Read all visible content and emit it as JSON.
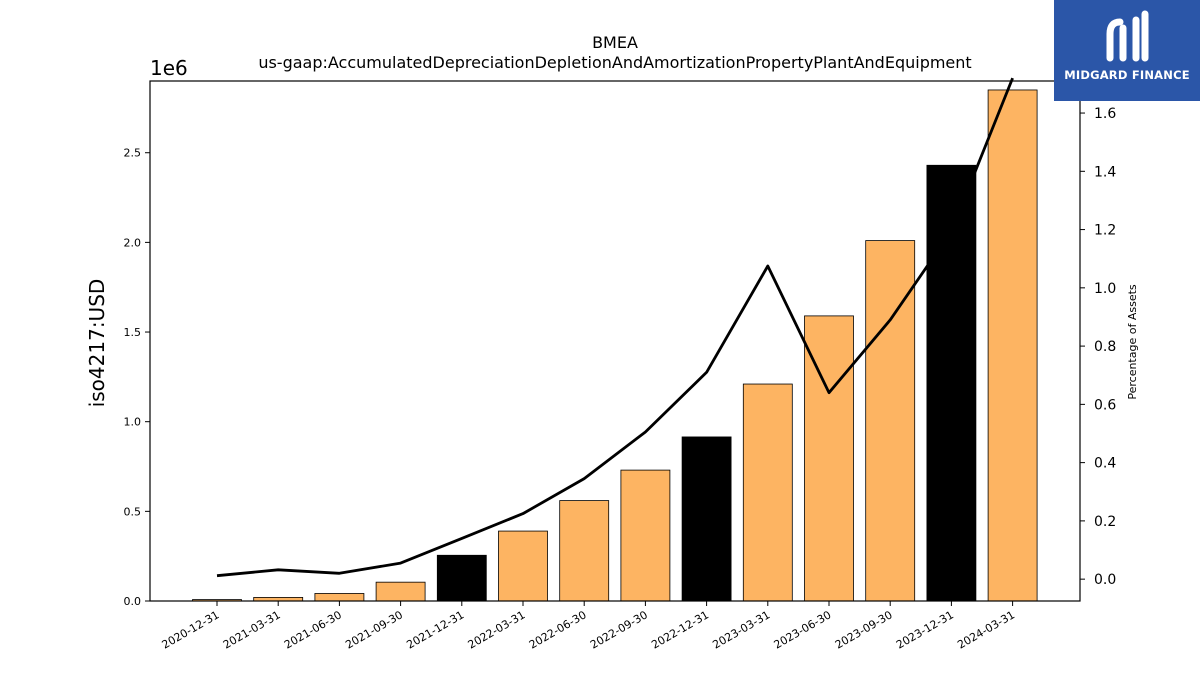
{
  "chart_data": {
    "type": "bar",
    "title": "BMEA",
    "subtitle": "us-gaap:AccumulatedDepreciationDepletionAndAmortizationPropertyPlantAndEquipment",
    "ylabel": "iso4217:USD",
    "y_offset_label": "1e6",
    "y2label": "Percentage of Assets",
    "categories": [
      "2020-12-31",
      "2021-03-31",
      "2021-06-30",
      "2021-09-30",
      "2021-12-31",
      "2022-03-31",
      "2022-06-30",
      "2022-09-30",
      "2022-12-31",
      "2023-03-31",
      "2023-06-30",
      "2023-09-30",
      "2023-12-31",
      "2024-03-31"
    ],
    "values": [
      0.008,
      0.02,
      0.042,
      0.105,
      0.255,
      0.39,
      0.56,
      0.73,
      0.915,
      1.21,
      1.59,
      2.01,
      2.43,
      2.85
    ],
    "bar_colors": [
      "#fdb462",
      "#fdb462",
      "#fdb462",
      "#fdb462",
      "#000000",
      "#fdb462",
      "#fdb462",
      "#fdb462",
      "#000000",
      "#fdb462",
      "#fdb462",
      "#fdb462",
      "#000000",
      "#fdb462"
    ],
    "series_line": {
      "values": [
        0.012,
        0.032,
        0.02,
        0.055,
        0.14,
        0.225,
        0.345,
        0.505,
        0.71,
        1.075,
        0.64,
        0.89,
        1.195,
        1.72
      ]
    },
    "ylim": [
      0,
      2.9
    ],
    "yticks": [
      "0.0",
      "0.5",
      "1.0",
      "1.5",
      "2.0",
      "2.5"
    ],
    "y2lim": [
      -0.075,
      1.71
    ],
    "y2ticks": [
      "0.0",
      "0.2",
      "0.4",
      "0.6",
      "0.8",
      "1.0",
      "1.2",
      "1.4",
      "1.6"
    ],
    "grid": false,
    "line_color": "#000000"
  },
  "logo": {
    "name": "MIDGARD FINANCE",
    "background": "#2b56a8"
  }
}
